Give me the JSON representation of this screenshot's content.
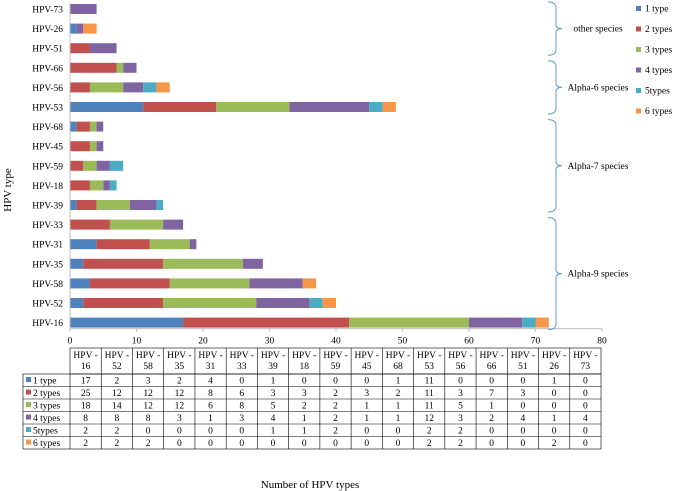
{
  "chart_data": {
    "type": "bar",
    "orientation": "horizontal",
    "stacked": true,
    "title": "",
    "xlabel": "Number of HPV types",
    "ylabel": "HPV type",
    "xlim": [
      0,
      80
    ],
    "xticks": [
      0,
      10,
      20,
      30,
      40,
      50,
      60,
      70,
      80
    ],
    "legend_position": "right",
    "categories": [
      "HPV-16",
      "HPV-52",
      "HPV-58",
      "HPV-35",
      "HPV-31",
      "HPV-33",
      "HPV-39",
      "HPV-18",
      "HPV-59",
      "HPV-45",
      "HPV-68",
      "HPV-53",
      "HPV-56",
      "HPV-66",
      "HPV-51",
      "HPV-26",
      "HPV-73"
    ],
    "table_headers": [
      [
        "HPV -",
        "16"
      ],
      [
        "HPV -",
        "52"
      ],
      [
        "HPV -",
        "58"
      ],
      [
        "HPV -",
        "35"
      ],
      [
        "HPV -",
        "31"
      ],
      [
        "HPV -",
        "33"
      ],
      [
        "HPV -",
        "39"
      ],
      [
        "HPV -",
        "18"
      ],
      [
        "HPV -",
        "59"
      ],
      [
        "HPV -",
        "45"
      ],
      [
        "HPV -",
        "68"
      ],
      [
        "HPV -",
        "53"
      ],
      [
        "HPV -",
        "56"
      ],
      [
        "HPV -",
        "66"
      ],
      [
        "HPV -",
        "51"
      ],
      [
        "HPV -",
        "26"
      ],
      [
        "HPV -",
        "73"
      ]
    ],
    "series": [
      {
        "name": "1 type",
        "table_label": "1 type",
        "color": "#4f81bd",
        "values": [
          17,
          2,
          3,
          2,
          4,
          0,
          1,
          0,
          0,
          0,
          1,
          11,
          0,
          0,
          0,
          1,
          0
        ]
      },
      {
        "name": "2 types",
        "table_label": "2 types",
        "color": "#c0504d",
        "values": [
          25,
          12,
          12,
          12,
          8,
          6,
          3,
          3,
          2,
          3,
          2,
          11,
          3,
          7,
          3,
          0,
          0
        ]
      },
      {
        "name": "3 types",
        "table_label": "3 types",
        "color": "#9bbb59",
        "values": [
          18,
          14,
          12,
          12,
          6,
          8,
          5,
          2,
          2,
          1,
          1,
          11,
          5,
          1,
          0,
          0,
          0
        ]
      },
      {
        "name": "4 types",
        "table_label": "4 types",
        "color": "#8064a2",
        "values": [
          8,
          8,
          8,
          3,
          1,
          3,
          4,
          1,
          2,
          1,
          1,
          12,
          3,
          2,
          4,
          1,
          4
        ]
      },
      {
        "name": "5types",
        "table_label": "5types",
        "color": "#4bacc6",
        "values": [
          2,
          2,
          0,
          0,
          0,
          0,
          1,
          1,
          2,
          0,
          0,
          2,
          2,
          0,
          0,
          0,
          0
        ]
      },
      {
        "name": "6 types",
        "table_label": "6 types",
        "color": "#f79646",
        "values": [
          2,
          2,
          2,
          0,
          0,
          0,
          0,
          0,
          0,
          0,
          0,
          2,
          2,
          0,
          0,
          2,
          0
        ]
      }
    ],
    "annotations": [
      {
        "label": "other species",
        "from": "HPV-73",
        "to": "HPV-51"
      },
      {
        "label": "Alpha-6 species",
        "from": "HPV-66",
        "to": "HPV-53"
      },
      {
        "label": "Alpha-7 species",
        "from": "HPV-68",
        "to": "HPV-39"
      },
      {
        "label": "Alpha-9 species",
        "from": "HPV-33",
        "to": "HPV-16"
      }
    ]
  }
}
